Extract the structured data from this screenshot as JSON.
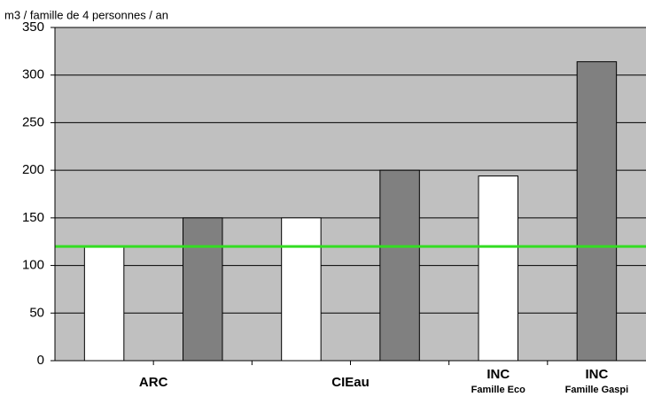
{
  "chart_data": {
    "type": "bar",
    "y_label": "m3 / famille de 4 personnes / an",
    "categories": [
      {
        "label": "ARC"
      },
      {
        "label": "CIEau"
      },
      {
        "label": "INC",
        "sublabel": "Famille Eco"
      },
      {
        "label": "INC",
        "sublabel": "Famille Gaspi"
      }
    ],
    "series": [
      {
        "color": "#ffffff",
        "values": [
          120,
          150,
          194,
          null
        ]
      },
      {
        "color": "#808080",
        "values": [
          150,
          200,
          null,
          314
        ]
      }
    ],
    "reference_line": {
      "value": 120,
      "color": "#33dd22"
    },
    "ylim": [
      0,
      350
    ],
    "yticks": [
      0,
      50,
      100,
      150,
      200,
      250,
      300,
      350
    ],
    "grid": true,
    "background": "#c0c0c0"
  }
}
